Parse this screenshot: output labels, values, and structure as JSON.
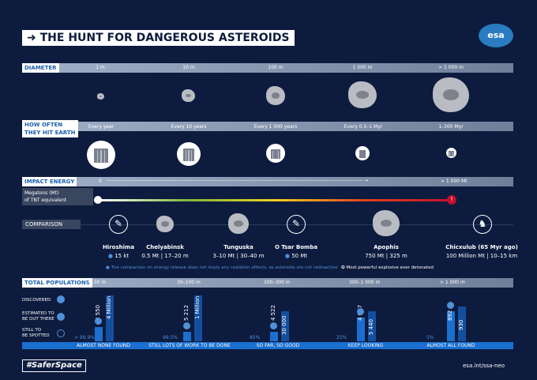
{
  "title": "THE HUNT FOR DANGEROUS ASTEROIDS",
  "logo": "esa",
  "diameter": {
    "label": "DIAMETER",
    "sizes": [
      "1 m",
      "10 m",
      "100 m",
      "1 000 m",
      "> 1 000 m"
    ]
  },
  "frequency": {
    "label_line1": "HOW OFTEN",
    "label_line2": "THEY HIT EARTH",
    "items": [
      "Every year",
      "Every 10 years",
      "Every 1 000 years",
      "Every 0.5–1 Myr",
      "1–300 Myr"
    ]
  },
  "energy": {
    "label": "IMPACT ENERGY",
    "start": "0",
    "end": "> 1 000 Mt",
    "unit_line1": "Megatons (Mt)",
    "unit_line2": "of TNT equivalent"
  },
  "comparison": {
    "label": "COMPARISON",
    "items": [
      {
        "name": "Hiroshima",
        "value": "15 kt"
      },
      {
        "name": "Chelyabinsk",
        "value": "0.5 Mt | 17–20 m"
      },
      {
        "name": "Tunguska",
        "value": "3–10 Mt | 30–40 m"
      },
      {
        "name": "Tsar Bomba",
        "value": "50 Mt"
      },
      {
        "name": "Apophis",
        "value": "750 Mt | 325 m"
      },
      {
        "name": "Chicxulub (65 Myr ago)",
        "value": "100 Million Mt | 10–15 km"
      }
    ],
    "note": "The comparison on energy release does not imply any radiation effects, as asteroids are not radioactive",
    "legend": "Most powerful explosive ever detonated"
  },
  "populations": {
    "label": "TOTAL POPULATIONS",
    "row_discovered": "DISCOVERED",
    "row_estimated_1": "ESTIMATED TO",
    "row_estimated_2": "BE OUT THERE",
    "row_spotted_1": "STILL TO",
    "row_spotted_2": "BE SPOTTED",
    "groups": [
      {
        "range": "0–30 m",
        "discovered": "3 550",
        "estimated": "4 Million",
        "pct": "> 99.9%",
        "caption": "ALMOST NONE FOUND"
      },
      {
        "range": "30–100 m",
        "discovered": "5 212",
        "estimated": "1 Million",
        "pct": "99.5%",
        "caption": "STILL LOTS OF WORK TO BE DONE"
      },
      {
        "range": "100–300 m",
        "discovered": "4 522",
        "estimated": "30 000",
        "pct": "85%",
        "caption": "SO FAR, SO GOOD"
      },
      {
        "range": "300–1 000 m",
        "discovered": "4 007",
        "estimated": "5 440",
        "pct": "25%",
        "caption": "KEEP LOOKING"
      },
      {
        "range": "> 1 000 m",
        "discovered": "892",
        "estimated": "930",
        "pct": "5%",
        "caption": "ALMOST ALL FOUND"
      }
    ]
  },
  "footer": {
    "hashtag": "#SaferSpace",
    "url": "esa.int/ssa-neo"
  }
}
